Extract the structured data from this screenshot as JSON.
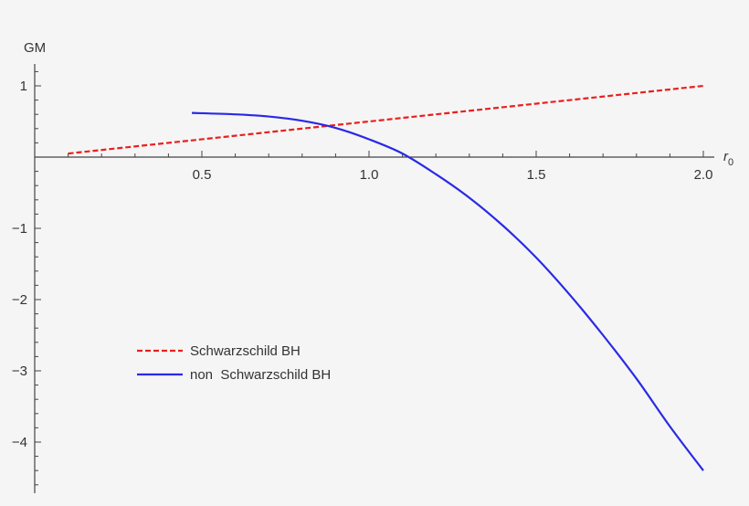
{
  "chart_data": {
    "type": "line",
    "xlabel": "r",
    "xlabel_subscript": "0",
    "ylabel": "GM",
    "xlim": [
      0.0,
      2.0
    ],
    "ylim": [
      -4.6,
      1.3
    ],
    "x_ticks": [
      {
        "value": 0.5,
        "label": "0.5"
      },
      {
        "value": 1.0,
        "label": "1.0"
      },
      {
        "value": 1.5,
        "label": "1.5"
      },
      {
        "value": 2.0,
        "label": "2.0"
      }
    ],
    "y_ticks": [
      {
        "value": 1,
        "label": "1"
      },
      {
        "value": -1,
        "label": "−1"
      },
      {
        "value": -2,
        "label": "−2"
      },
      {
        "value": -3,
        "label": "−3"
      },
      {
        "value": -4,
        "label": "−4"
      }
    ],
    "grid": false,
    "legend_position": "lower-left",
    "series": [
      {
        "name": "Schwarzschild BH",
        "color": "#e8201e",
        "style": "dashed",
        "x": [
          0.1,
          2.0
        ],
        "y": [
          0.05,
          1.0
        ]
      },
      {
        "name": "non  Schwarzschild BH",
        "color": "#2a2ae6",
        "style": "solid",
        "x": [
          0.47,
          0.6,
          0.7,
          0.8,
          0.9,
          1.0,
          1.1,
          1.2,
          1.3,
          1.4,
          1.5,
          1.6,
          1.7,
          1.8,
          1.9,
          2.0
        ],
        "y": [
          0.62,
          0.6,
          0.57,
          0.51,
          0.41,
          0.25,
          0.05,
          -0.24,
          -0.57,
          -0.96,
          -1.41,
          -1.93,
          -2.5,
          -3.11,
          -3.78,
          -4.4
        ]
      }
    ]
  }
}
